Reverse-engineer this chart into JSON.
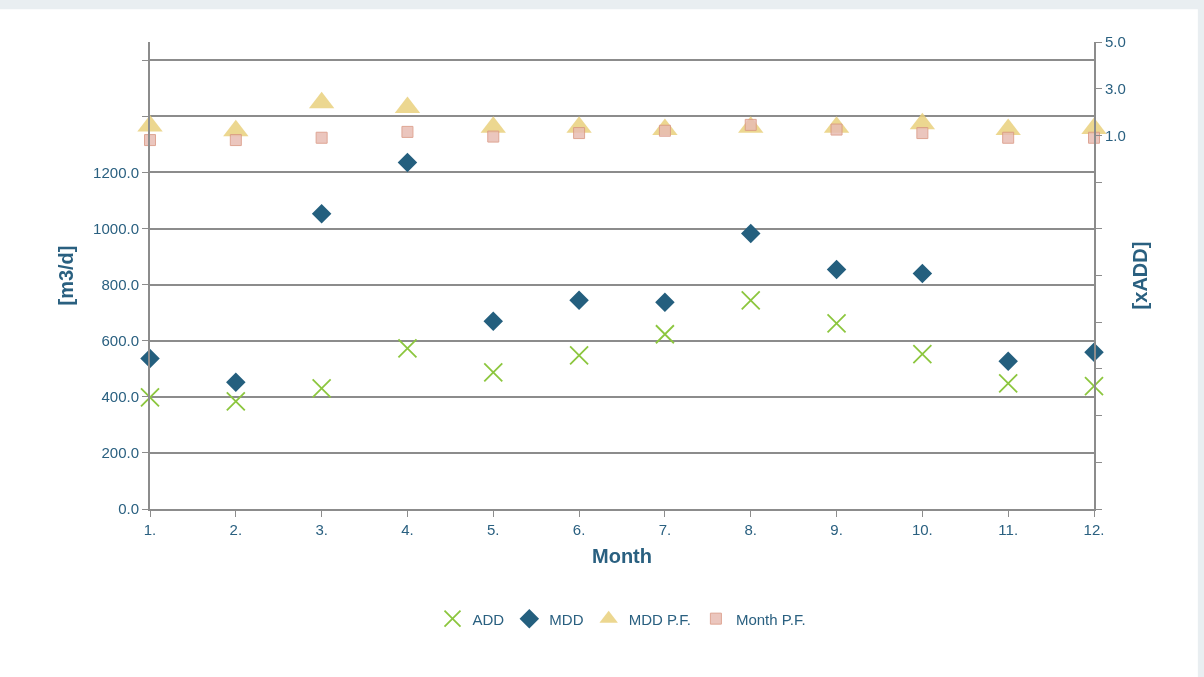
{
  "chart_data": {
    "type": "scatter",
    "xlabel": "Month",
    "ylabel": "[m3/d]",
    "y2label": "[xADD]",
    "categories": [
      "1.",
      "2.",
      "3.",
      "4.",
      "5.",
      "6.",
      "7.",
      "8.",
      "9.",
      "10.",
      "11.",
      "12."
    ],
    "series": [
      {
        "name": "ADD",
        "color": "#8cc63e",
        "marker": "cross",
        "values": [
          398,
          384,
          430,
          573,
          487,
          548,
          623,
          744,
          662,
          552,
          448,
          438
        ]
      },
      {
        "name": "MDD",
        "color": "#245f7e",
        "marker": "diamond",
        "values": [
          537,
          452,
          1053,
          1235,
          669,
          744,
          737,
          982,
          854,
          840,
          527,
          559
        ]
      },
      {
        "name": "MDD P.F.",
        "color": "#e9d07c",
        "marker": "triangle",
        "axis": "y2",
        "values": [
          1.4,
          1.2,
          2.4,
          2.2,
          1.35,
          1.35,
          1.25,
          1.35,
          1.35,
          1.5,
          1.25,
          1.3
        ]
      },
      {
        "name": "Month P.F.",
        "color": "#e8bdb3",
        "marker": "square",
        "axis": "y2",
        "values": [
          0.8,
          0.8,
          0.9,
          1.15,
          0.95,
          1.1,
          1.2,
          1.45,
          1.25,
          1.1,
          0.9,
          0.9
        ]
      }
    ],
    "ylim": [
      0,
      1665
    ],
    "yticks": [
      {
        "value": 0,
        "label": "0.0"
      },
      {
        "value": 200,
        "label": "200.0"
      },
      {
        "value": 400,
        "label": "400.0"
      },
      {
        "value": 600,
        "label": "600.0"
      },
      {
        "value": 800,
        "label": "800.0"
      },
      {
        "value": 1000,
        "label": "1000.0"
      },
      {
        "value": 1200,
        "label": "1200.0"
      },
      {
        "value": 1400,
        "label": null
      },
      {
        "value": 1600,
        "label": null
      }
    ],
    "y2lim": [
      -15,
      5
    ],
    "y2ticks": [
      {
        "value": -15,
        "label": null
      },
      {
        "value": -13,
        "label": null
      },
      {
        "value": -11,
        "label": null
      },
      {
        "value": -9,
        "label": null
      },
      {
        "value": -7,
        "label": null
      },
      {
        "value": -5,
        "label": null
      },
      {
        "value": -3,
        "label": null
      },
      {
        "value": -1,
        "label": null
      },
      {
        "value": 1,
        "label": "1.0"
      },
      {
        "value": 3,
        "label": "3.0"
      },
      {
        "value": 5,
        "label": "5.0"
      }
    ],
    "grid": "y",
    "legend": "bottom"
  }
}
